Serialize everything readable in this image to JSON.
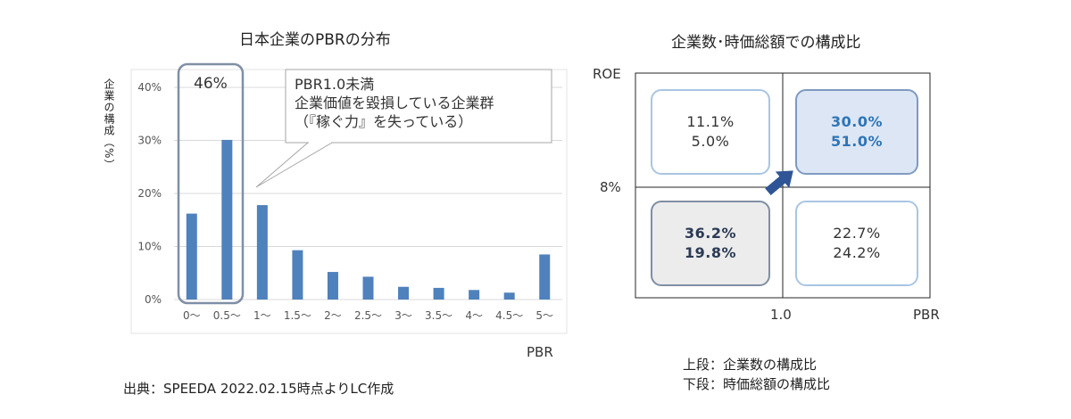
{
  "left_chart": {
    "title": "日本企業のPBRの分布",
    "ylabel": "企業の構成（%）",
    "xlabel": "PBR",
    "highlight_label": "46%",
    "callout": {
      "line1": "PBR1.0未満",
      "line2": "企業価値を毀損している企業群",
      "line3": "（『稼ぐ力』を失っている）"
    }
  },
  "chart_data": {
    "type": "bar",
    "title": "日本企業のPBRの分布",
    "xlabel": "PBR",
    "ylabel": "企業の構成（%）",
    "categories": [
      "0～",
      "0.5～",
      "1～",
      "1.5～",
      "2～",
      "2.5～",
      "3～",
      "3.5～",
      "4～",
      "4.5～",
      "5～"
    ],
    "values": [
      16.2,
      30.1,
      17.8,
      9.3,
      5.2,
      4.3,
      2.4,
      2.2,
      1.8,
      1.3,
      8.5
    ],
    "ylim": [
      0,
      40
    ],
    "yticks": [
      "0%",
      "10%",
      "20%",
      "30%",
      "40%"
    ],
    "grid": true,
    "bar_color": "#4f81bd"
  },
  "right_chart": {
    "title": "企業数･時価総額での構成比",
    "y_axis_label": "ROE",
    "y_threshold": "8%",
    "x_threshold": "1.0",
    "x_axis_label": "PBR",
    "quadrants": {
      "top_left": {
        "top": "11.1%",
        "bottom": "5.0%"
      },
      "top_right": {
        "top": "30.0%",
        "bottom": "51.0%"
      },
      "bottom_left": {
        "top": "36.2%",
        "bottom": "19.8%"
      },
      "bottom_right": {
        "top": "22.7%",
        "bottom": "24.2%"
      }
    },
    "arrow_color": "#2f5597"
  },
  "notes": {
    "upper": "上段：企業数の構成比",
    "lower": "下段：時価総額の構成比"
  },
  "source": "出典：SPEEDA 2022.02.15時点よりLC作成"
}
